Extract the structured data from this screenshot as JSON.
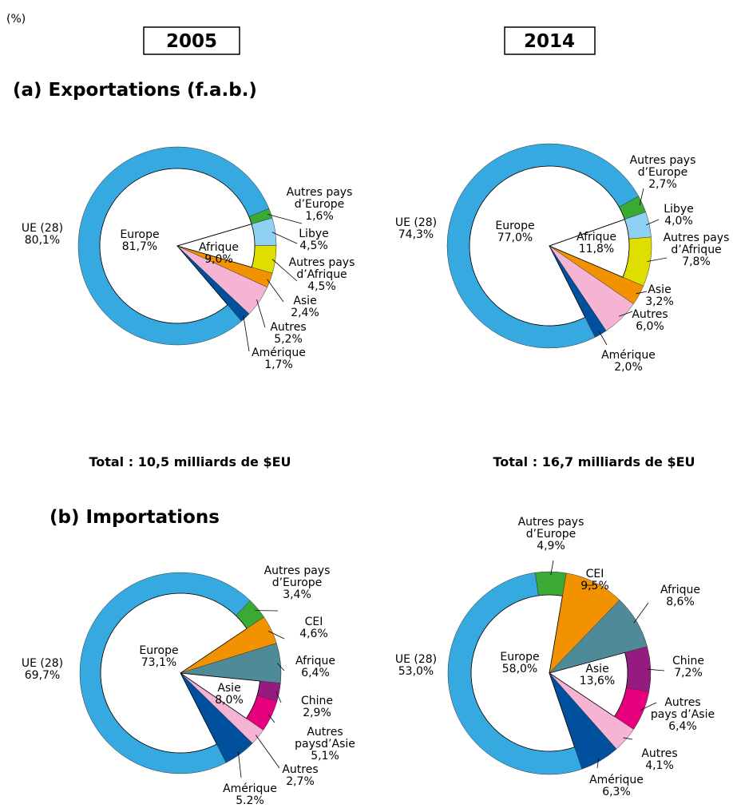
{
  "unit_label": "(%)",
  "column_headers": [
    "2005",
    "2014"
  ],
  "section_titles": [
    "(a) Exportations (f.a.b.)",
    "(b) Importations"
  ],
  "totals": [
    "Total : 10,5 milliards de $EU",
    "Total : 16,7 milliards de $EU"
  ],
  "chart_data": [
    {
      "type": "donut",
      "categories": [
        "UE (28)",
        "Autres pays\nd’Europe",
        "Libye",
        "Autres pays\nd’Afrique",
        "Asie",
        "Autres",
        "Amérique"
      ],
      "values": [
        80.1,
        1.6,
        4.5,
        4.5,
        2.4,
        5.2,
        1.7
      ],
      "value_labels": [
        "80,1%",
        "1,6%",
        "4,5%",
        "4,5%",
        "2,4%",
        "5,2%",
        "1,7%"
      ],
      "colors": [
        "#36a9e1",
        "#3aaa35",
        "#8fd1f3",
        "#dede00",
        "#f39200",
        "#f5b4d3",
        "#00509e"
      ],
      "groups": [
        {
          "name": "Europe",
          "value": 81.7,
          "value_label": "81,7%"
        },
        {
          "name": "Afrique",
          "value": 9.0,
          "value_label": "9,0%"
        }
      ]
    },
    {
      "type": "donut",
      "categories": [
        "UE (28)",
        "Autres pays\nd’Europe",
        "Libye",
        "Autres pays\nd’Afrique",
        "Asie",
        "Autres",
        "Amérique"
      ],
      "values": [
        74.3,
        2.7,
        4.0,
        7.8,
        3.2,
        6.0,
        2.0
      ],
      "value_labels": [
        "74,3%",
        "2,7%",
        "4,0%",
        "7,8%",
        "3,2%",
        "6,0%",
        "2,0%"
      ],
      "colors": [
        "#36a9e1",
        "#3aaa35",
        "#8fd1f3",
        "#dede00",
        "#f39200",
        "#f5b4d3",
        "#00509e"
      ],
      "groups": [
        {
          "name": "Europe",
          "value": 77.0,
          "value_label": "77,0%"
        },
        {
          "name": "Afrique",
          "value": 11.8,
          "value_label": "11,8%"
        }
      ]
    },
    {
      "type": "donut",
      "categories": [
        "UE (28)",
        "Autres pays\nd’Europe",
        "CEI",
        "Afrique",
        "Chine",
        "Autres\npaysd’Asie",
        "Autres",
        "Amérique"
      ],
      "values": [
        69.7,
        3.4,
        4.6,
        6.4,
        2.9,
        5.1,
        2.7,
        5.2
      ],
      "value_labels": [
        "69,7%",
        "3,4%",
        "4,6%",
        "6,4%",
        "2,9%",
        "5,1%",
        "2,7%",
        "5.2%"
      ],
      "colors": [
        "#36a9e1",
        "#3aaa35",
        "#f39200",
        "#4f8a99",
        "#951b81",
        "#e6007e",
        "#f5b4d3",
        "#00509e"
      ],
      "groups": [
        {
          "name": "Europe",
          "value": 73.1,
          "value_label": "73,1%"
        },
        {
          "name": "Asie",
          "value": 8.0,
          "value_label": "8,0%"
        }
      ]
    },
    {
      "type": "donut",
      "categories": [
        "UE (28)",
        "Autres pays\nd’Europe",
        "CEI",
        "Afrique",
        "Chine",
        "Autres\npays d’Asie",
        "Autres",
        "Amérique"
      ],
      "values": [
        53.0,
        4.9,
        9.5,
        8.6,
        7.2,
        6.4,
        4.1,
        6.3
      ],
      "value_labels": [
        "53,0%",
        "4,9%",
        "9,5%",
        "8,6%",
        "7,2%",
        "6,4%",
        "4,1%",
        "6,3%"
      ],
      "colors": [
        "#36a9e1",
        "#3aaa35",
        "#f39200",
        "#4f8a99",
        "#951b81",
        "#e6007e",
        "#f5b4d3",
        "#00509e"
      ],
      "groups": [
        {
          "name": "Europe",
          "value": 58.0,
          "value_label": "58,0%"
        },
        {
          "name": "Asie",
          "value": 13.6,
          "value_label": "13,6%"
        }
      ]
    }
  ]
}
